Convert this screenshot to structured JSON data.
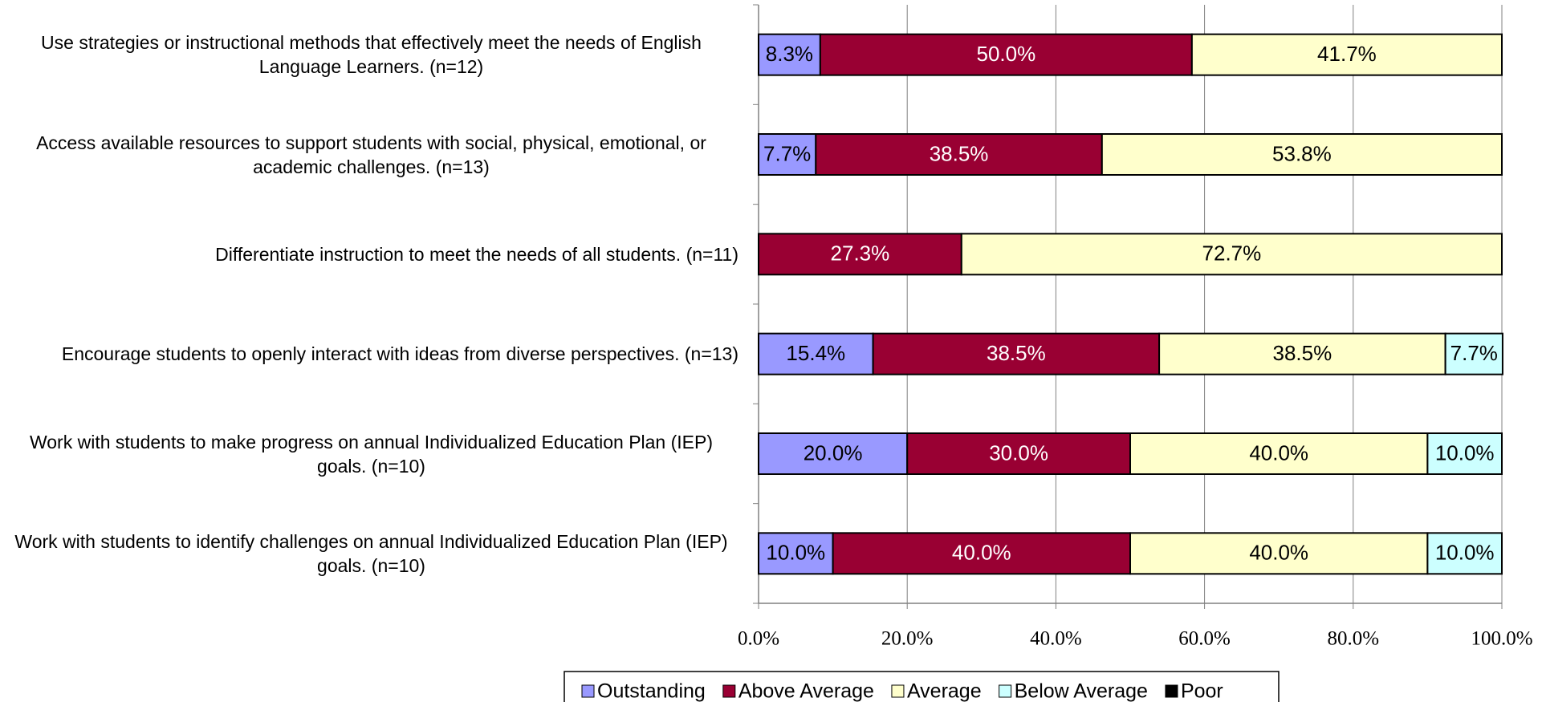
{
  "chart_data": {
    "type": "stacked-bar-horizontal",
    "categories": [
      "Use strategies or instructional methods that effectively meet the needs of English Language Learners. (n=12)",
      "Access available resources to support students with social, physical, emotional, or academic challenges. (n=13)",
      "Differentiate instruction to meet the needs of all students. (n=11)",
      "Encourage students to openly interact with ideas from diverse perspectives. (n=13)",
      "Work with students to make progress on annual Individualized Education Plan (IEP) goals. (n=10)",
      "Work with students to identify challenges on annual Individualized Education Plan (IEP) goals. (n=10)"
    ],
    "series": [
      {
        "name": "Outstanding",
        "color": "#9999ff",
        "label_color": "#000000",
        "values": [
          8.3,
          7.7,
          null,
          15.4,
          20.0,
          10.0
        ],
        "value_labels": [
          "8.3%",
          "7.7%",
          null,
          "15.4%",
          "20.0%",
          "10.0%"
        ]
      },
      {
        "name": "Above Average",
        "color": "#990033",
        "label_color": "#ffffff",
        "values": [
          50.0,
          38.5,
          27.3,
          38.5,
          30.0,
          40.0
        ],
        "value_labels": [
          "50.0%",
          "38.5%",
          "27.3%",
          "38.5%",
          "30.0%",
          "40.0%"
        ]
      },
      {
        "name": "Average",
        "color": "#ffffcc",
        "label_color": "#000000",
        "values": [
          41.7,
          53.8,
          72.7,
          38.5,
          40.0,
          40.0
        ],
        "value_labels": [
          "41.7%",
          "53.8%",
          "72.7%",
          "38.5%",
          "40.0%",
          "40.0%"
        ]
      },
      {
        "name": "Below Average",
        "color": "#ccffff",
        "label_color": "#000000",
        "values": [
          null,
          null,
          null,
          7.7,
          10.0,
          10.0
        ],
        "value_labels": [
          null,
          null,
          null,
          "7.7%",
          "10.0%",
          "10.0%"
        ]
      },
      {
        "name": "Poor",
        "color": "#000000",
        "label_color": "#ffffff",
        "values": [
          null,
          null,
          null,
          null,
          null,
          null
        ]
      }
    ],
    "xlim": [
      0,
      100
    ],
    "xticks": [
      {
        "value": 0,
        "label": "0.0%"
      },
      {
        "value": 20,
        "label": "20.0%"
      },
      {
        "value": 40,
        "label": "40.0%"
      },
      {
        "value": 60,
        "label": "60.0%"
      },
      {
        "value": 80,
        "label": "80.0%"
      },
      {
        "value": 100,
        "label": "100.0%"
      }
    ],
    "grid": true,
    "legend": "bottom"
  }
}
